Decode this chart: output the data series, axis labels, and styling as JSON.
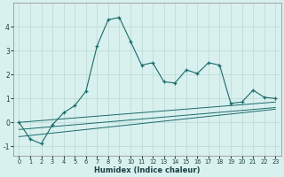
{
  "xlabel": "Humidex (Indice chaleur)",
  "background_color": "#d8f0ee",
  "grid_color": "#c0dcd8",
  "line_color": "#1a6b6b",
  "x_data": [
    0,
    1,
    2,
    3,
    4,
    5,
    6,
    7,
    8,
    9,
    10,
    11,
    12,
    13,
    14,
    15,
    16,
    17,
    18,
    19,
    20,
    21,
    22,
    23
  ],
  "y_main": [
    0.0,
    -0.7,
    -0.9,
    -0.1,
    0.4,
    0.7,
    1.3,
    3.2,
    4.3,
    4.4,
    3.4,
    2.4,
    2.5,
    1.7,
    1.65,
    2.2,
    2.05,
    2.5,
    2.4,
    0.8,
    0.85,
    1.35,
    1.05,
    1.0
  ],
  "y_line1": [
    0.0,
    0.037,
    0.074,
    0.111,
    0.148,
    0.185,
    0.222,
    0.259,
    0.296,
    0.333,
    0.37,
    0.407,
    0.444,
    0.481,
    0.518,
    0.555,
    0.592,
    0.629,
    0.666,
    0.703,
    0.74,
    0.777,
    0.814,
    0.851
  ],
  "y_line2": [
    -0.3,
    -0.26,
    -0.22,
    -0.18,
    -0.14,
    -0.1,
    -0.06,
    -0.02,
    0.02,
    0.06,
    0.1,
    0.14,
    0.18,
    0.22,
    0.26,
    0.3,
    0.34,
    0.38,
    0.42,
    0.46,
    0.5,
    0.54,
    0.58,
    0.62
  ],
  "y_line3": [
    -0.6,
    -0.55,
    -0.5,
    -0.45,
    -0.4,
    -0.35,
    -0.3,
    -0.25,
    -0.2,
    -0.15,
    -0.1,
    -0.05,
    0.0,
    0.05,
    0.1,
    0.15,
    0.2,
    0.25,
    0.3,
    0.35,
    0.4,
    0.45,
    0.5,
    0.55
  ],
  "ylim": [
    -1.4,
    5.0
  ],
  "xlim": [
    -0.5,
    23.5
  ],
  "yticks": [
    -1,
    0,
    1,
    2,
    3,
    4
  ],
  "xticks": [
    0,
    1,
    2,
    3,
    4,
    5,
    6,
    7,
    8,
    9,
    10,
    11,
    12,
    13,
    14,
    15,
    16,
    17,
    18,
    19,
    20,
    21,
    22,
    23
  ]
}
